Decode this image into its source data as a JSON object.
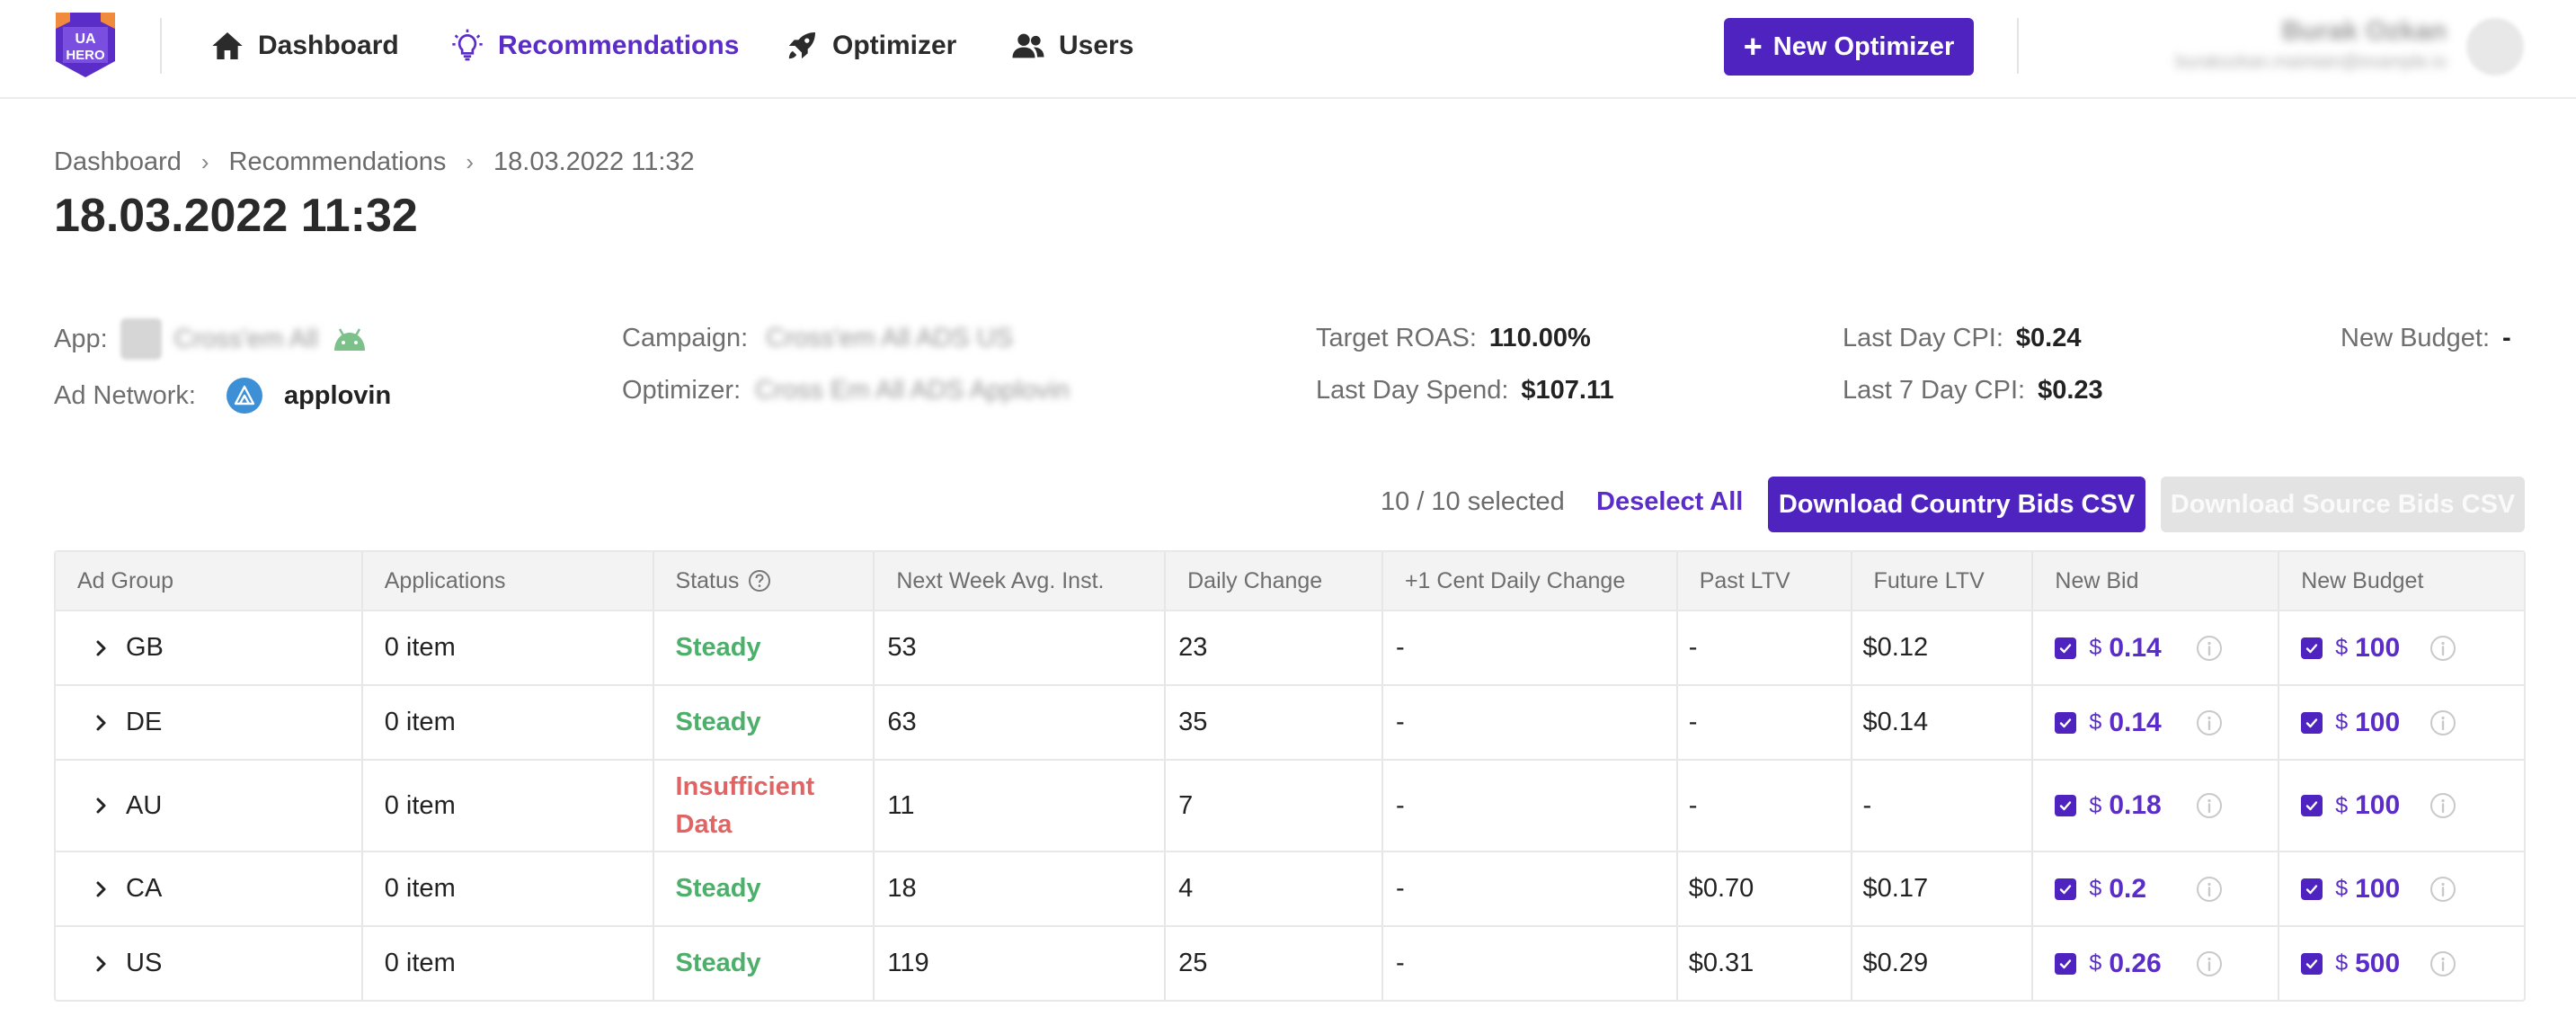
{
  "nav": {
    "items": [
      {
        "label": "Dashboard",
        "icon": "home-icon"
      },
      {
        "label": "Recommendations",
        "icon": "lightbulb-icon"
      },
      {
        "label": "Optimizer",
        "icon": "rocket-icon"
      },
      {
        "label": "Users",
        "icon": "users-icon"
      }
    ],
    "active": "Recommendations",
    "new_optimizer_label": "New Optimizer",
    "user_name": "Burak Ozkan",
    "user_email": "burakozkan.maintain@example.io"
  },
  "breadcrumb": [
    "Dashboard",
    "Recommendations",
    "18.03.2022 11:32"
  ],
  "page_title": "18.03.2022 11:32",
  "info": {
    "app_label": "App:",
    "app_value": "Cross'em All",
    "ad_network_label": "Ad Network:",
    "ad_network_value": "applovin",
    "campaign_label": "Campaign:",
    "campaign_value": "Cross'em All ADS US",
    "optimizer_label": "Optimizer:",
    "optimizer_value": "Cross Em All ADS Applovin",
    "target_roas_label": "Target ROAS:",
    "target_roas_value": "110.00%",
    "last_day_spend_label": "Last Day Spend:",
    "last_day_spend_value": "$107.11",
    "last_day_cpi_label": "Last Day CPI:",
    "last_day_cpi_value": "$0.24",
    "last_7_day_cpi_label": "Last 7 Day CPI:",
    "last_7_day_cpi_value": "$0.23",
    "new_budget_label": "New Budget:",
    "new_budget_value": "-"
  },
  "actions": {
    "selected_text": "10 / 10 selected",
    "deselect_label": "Deselect All",
    "download_country_label": "Download Country Bids CSV",
    "download_source_label": "Download Source Bids CSV"
  },
  "table": {
    "headers": [
      "Ad Group",
      "Applications",
      "Status",
      "Next Week Avg. Inst.",
      "Daily Change",
      "+1 Cent Daily Change",
      "Past LTV",
      "Future LTV",
      "New Bid",
      "New Budget"
    ],
    "currency_symbol": "$",
    "rows": [
      {
        "ad_group": "GB",
        "applications": "0 item",
        "status": "Steady",
        "status_kind": "steady",
        "next_week": "53",
        "daily_change": "23",
        "plus_cent": "-",
        "past_ltv": "-",
        "future_ltv": "$0.12",
        "new_bid": "0.14",
        "new_budget": "100"
      },
      {
        "ad_group": "DE",
        "applications": "0 item",
        "status": "Steady",
        "status_kind": "steady",
        "next_week": "63",
        "daily_change": "35",
        "plus_cent": "-",
        "past_ltv": "-",
        "future_ltv": "$0.14",
        "new_bid": "0.14",
        "new_budget": "100"
      },
      {
        "ad_group": "AU",
        "applications": "0 item",
        "status": "Insufficient Data",
        "status_kind": "insufficient",
        "next_week": "11",
        "daily_change": "7",
        "plus_cent": "-",
        "past_ltv": "-",
        "future_ltv": "-",
        "new_bid": "0.18",
        "new_budget": "100"
      },
      {
        "ad_group": "CA",
        "applications": "0 item",
        "status": "Steady",
        "status_kind": "steady",
        "next_week": "18",
        "daily_change": "4",
        "plus_cent": "-",
        "past_ltv": "$0.70",
        "future_ltv": "$0.17",
        "new_bid": "0.2",
        "new_budget": "100"
      },
      {
        "ad_group": "US",
        "applications": "0 item",
        "status": "Steady",
        "status_kind": "steady",
        "next_week": "119",
        "daily_change": "25",
        "plus_cent": "-",
        "past_ltv": "$0.31",
        "future_ltv": "$0.29",
        "new_bid": "0.26",
        "new_budget": "500"
      }
    ]
  },
  "colors": {
    "accent": "#4f23c0",
    "steady": "#4caf6a",
    "insufficient": "#e06464"
  }
}
